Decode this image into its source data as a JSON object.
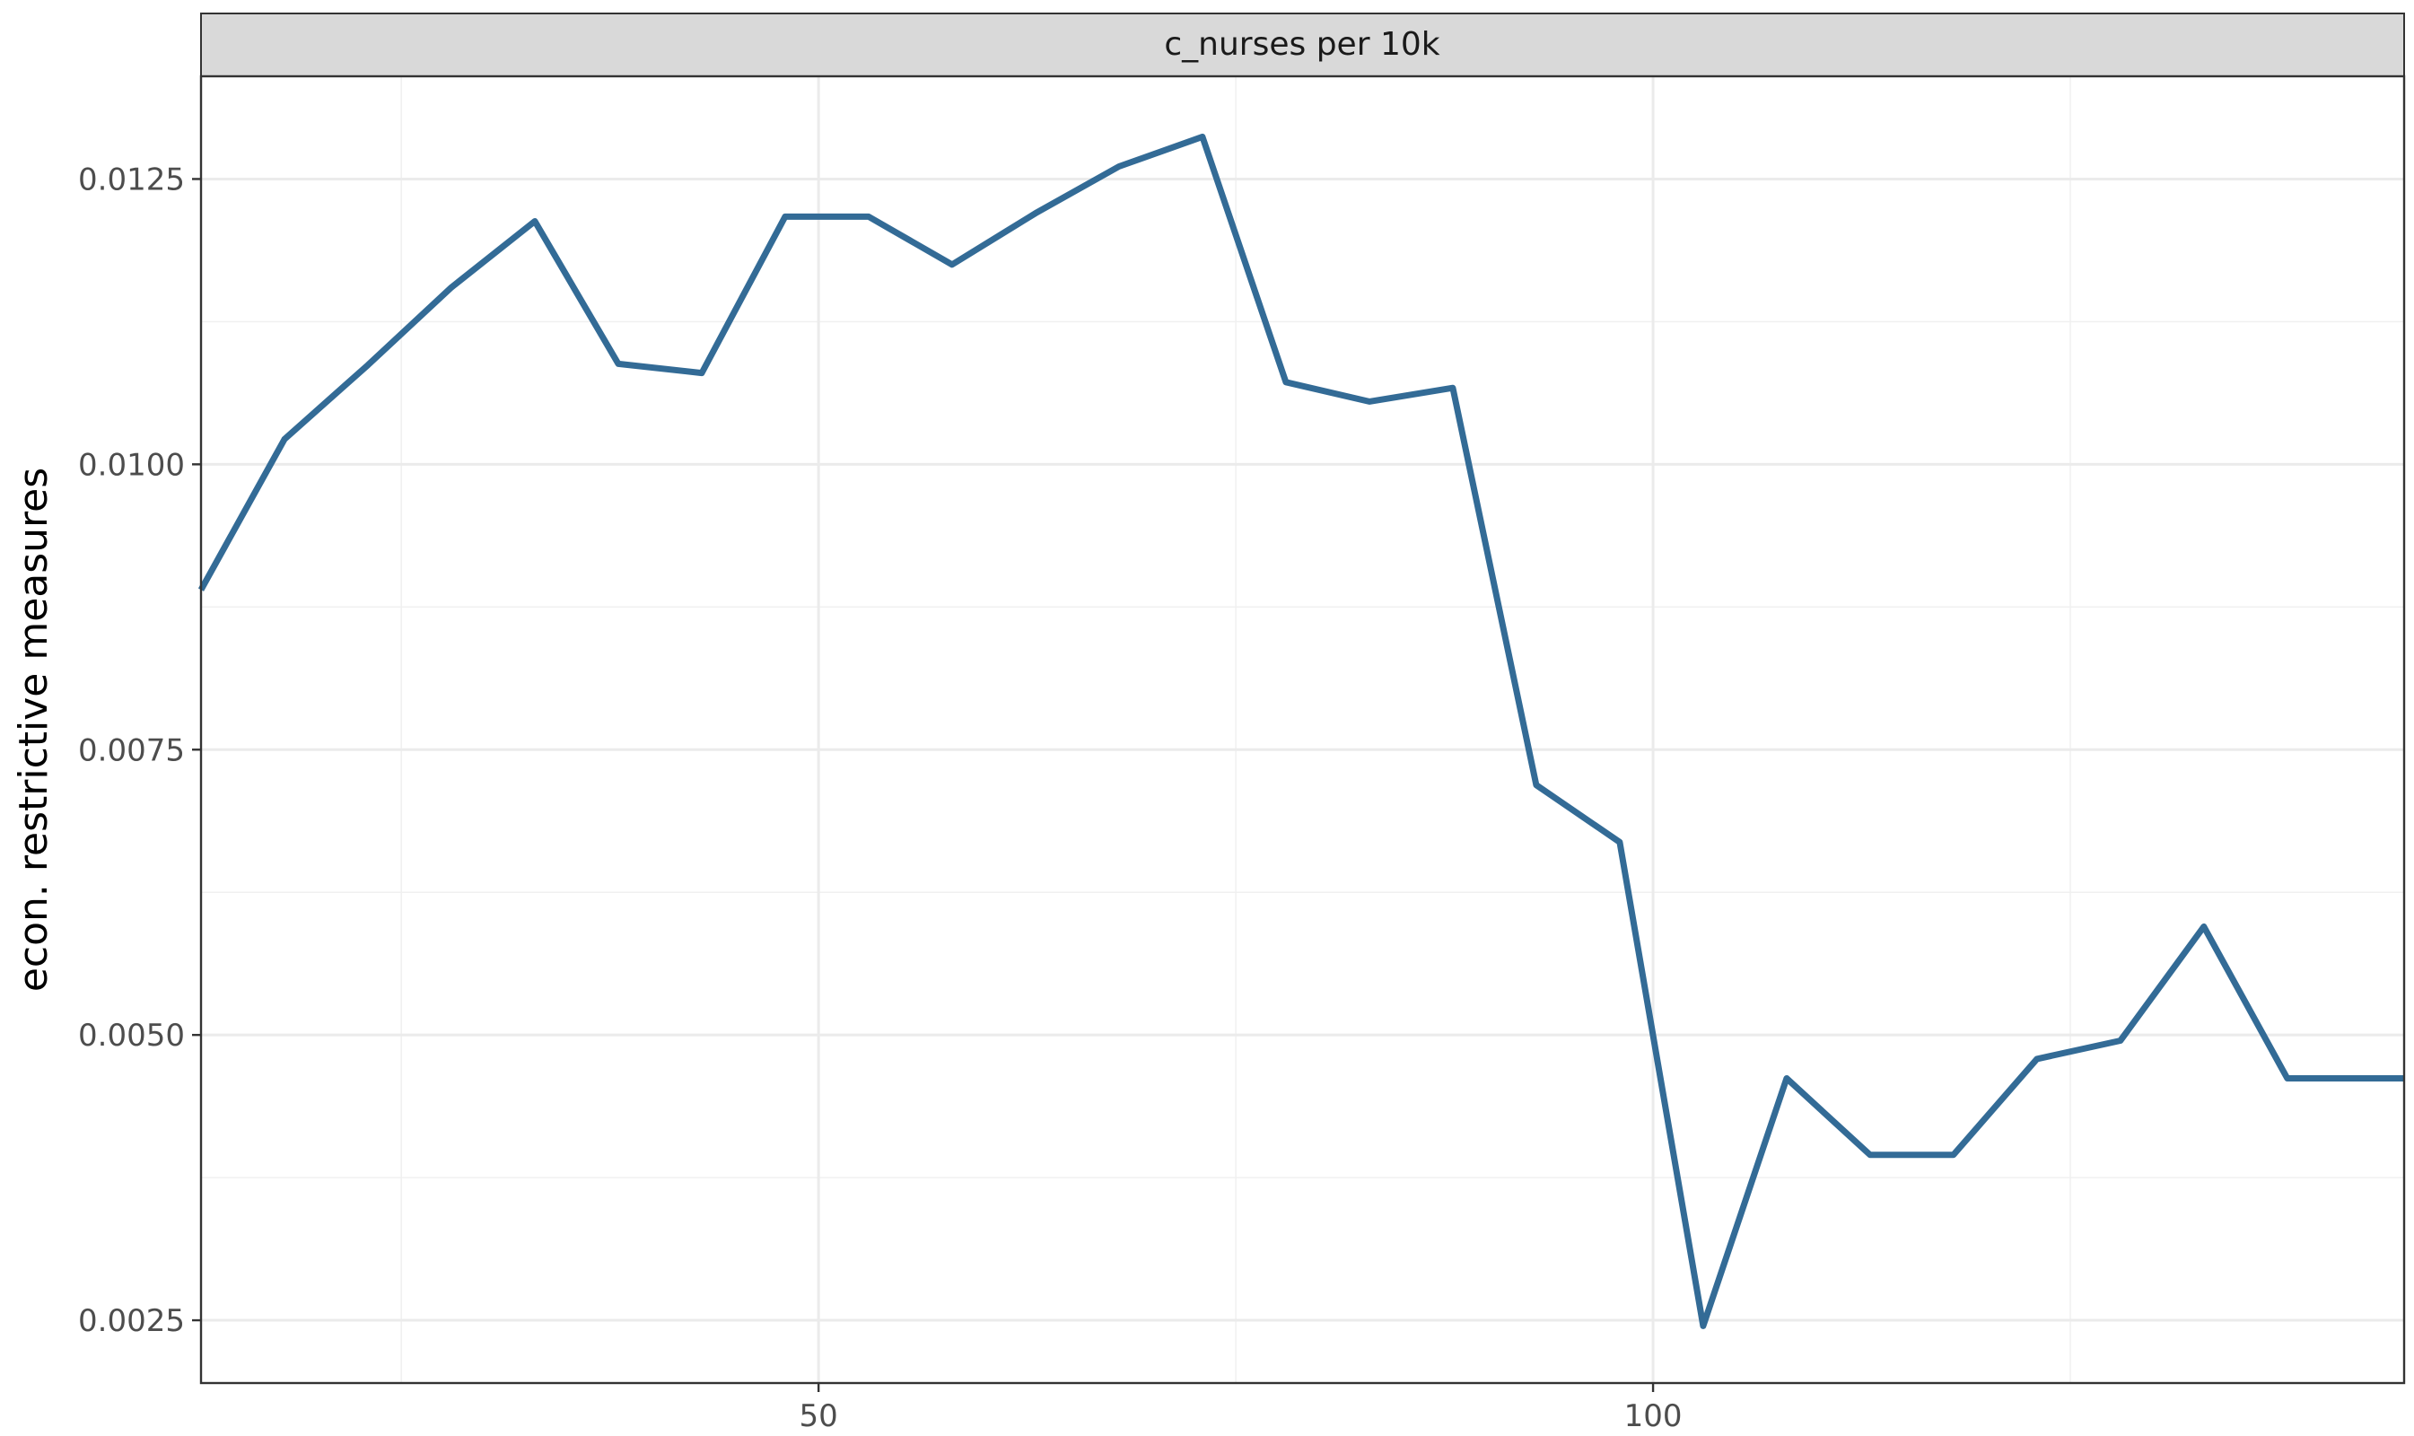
{
  "chart_data": {
    "type": "line",
    "facet_title": "c_nurses per 10k",
    "xlabel": "",
    "ylabel": "econ. restrictive measures",
    "xlim": [
      13,
      145
    ],
    "ylim": [
      0.00195,
      0.0134
    ],
    "x_ticks": [
      50,
      100
    ],
    "x_tick_labels": [
      "50",
      "100"
    ],
    "x_minor_ticks": [
      25,
      75,
      125
    ],
    "y_ticks": [
      0.0025,
      0.005,
      0.0075,
      0.01,
      0.0125
    ],
    "y_tick_labels": [
      "0.0025",
      "0.0050",
      "0.0075",
      "0.0100",
      "0.0125"
    ],
    "y_minor_ticks": [
      0.00375,
      0.00625,
      0.00875,
      0.01125
    ],
    "grid": true,
    "line_color": "#336b96",
    "strip_color": "#d9d9d9",
    "series": [
      {
        "x": [
          13,
          18,
          23,
          28,
          33,
          38,
          43,
          48,
          53,
          58,
          63,
          68,
          73,
          78,
          83,
          88,
          93,
          98,
          103,
          108,
          113,
          118,
          123,
          128,
          133,
          138,
          145
        ],
        "y": [
          0.0089,
          0.01022,
          0.01087,
          0.01155,
          0.01213,
          0.01088,
          0.0108,
          0.01217,
          0.01217,
          0.01175,
          0.0122,
          0.01261,
          0.01287,
          0.01072,
          0.01055,
          0.01067,
          0.00719,
          0.00669,
          0.00245,
          0.00462,
          0.00395,
          0.00395,
          0.00479,
          0.00495,
          0.00595,
          0.00462,
          0.00462
        ]
      }
    ]
  }
}
